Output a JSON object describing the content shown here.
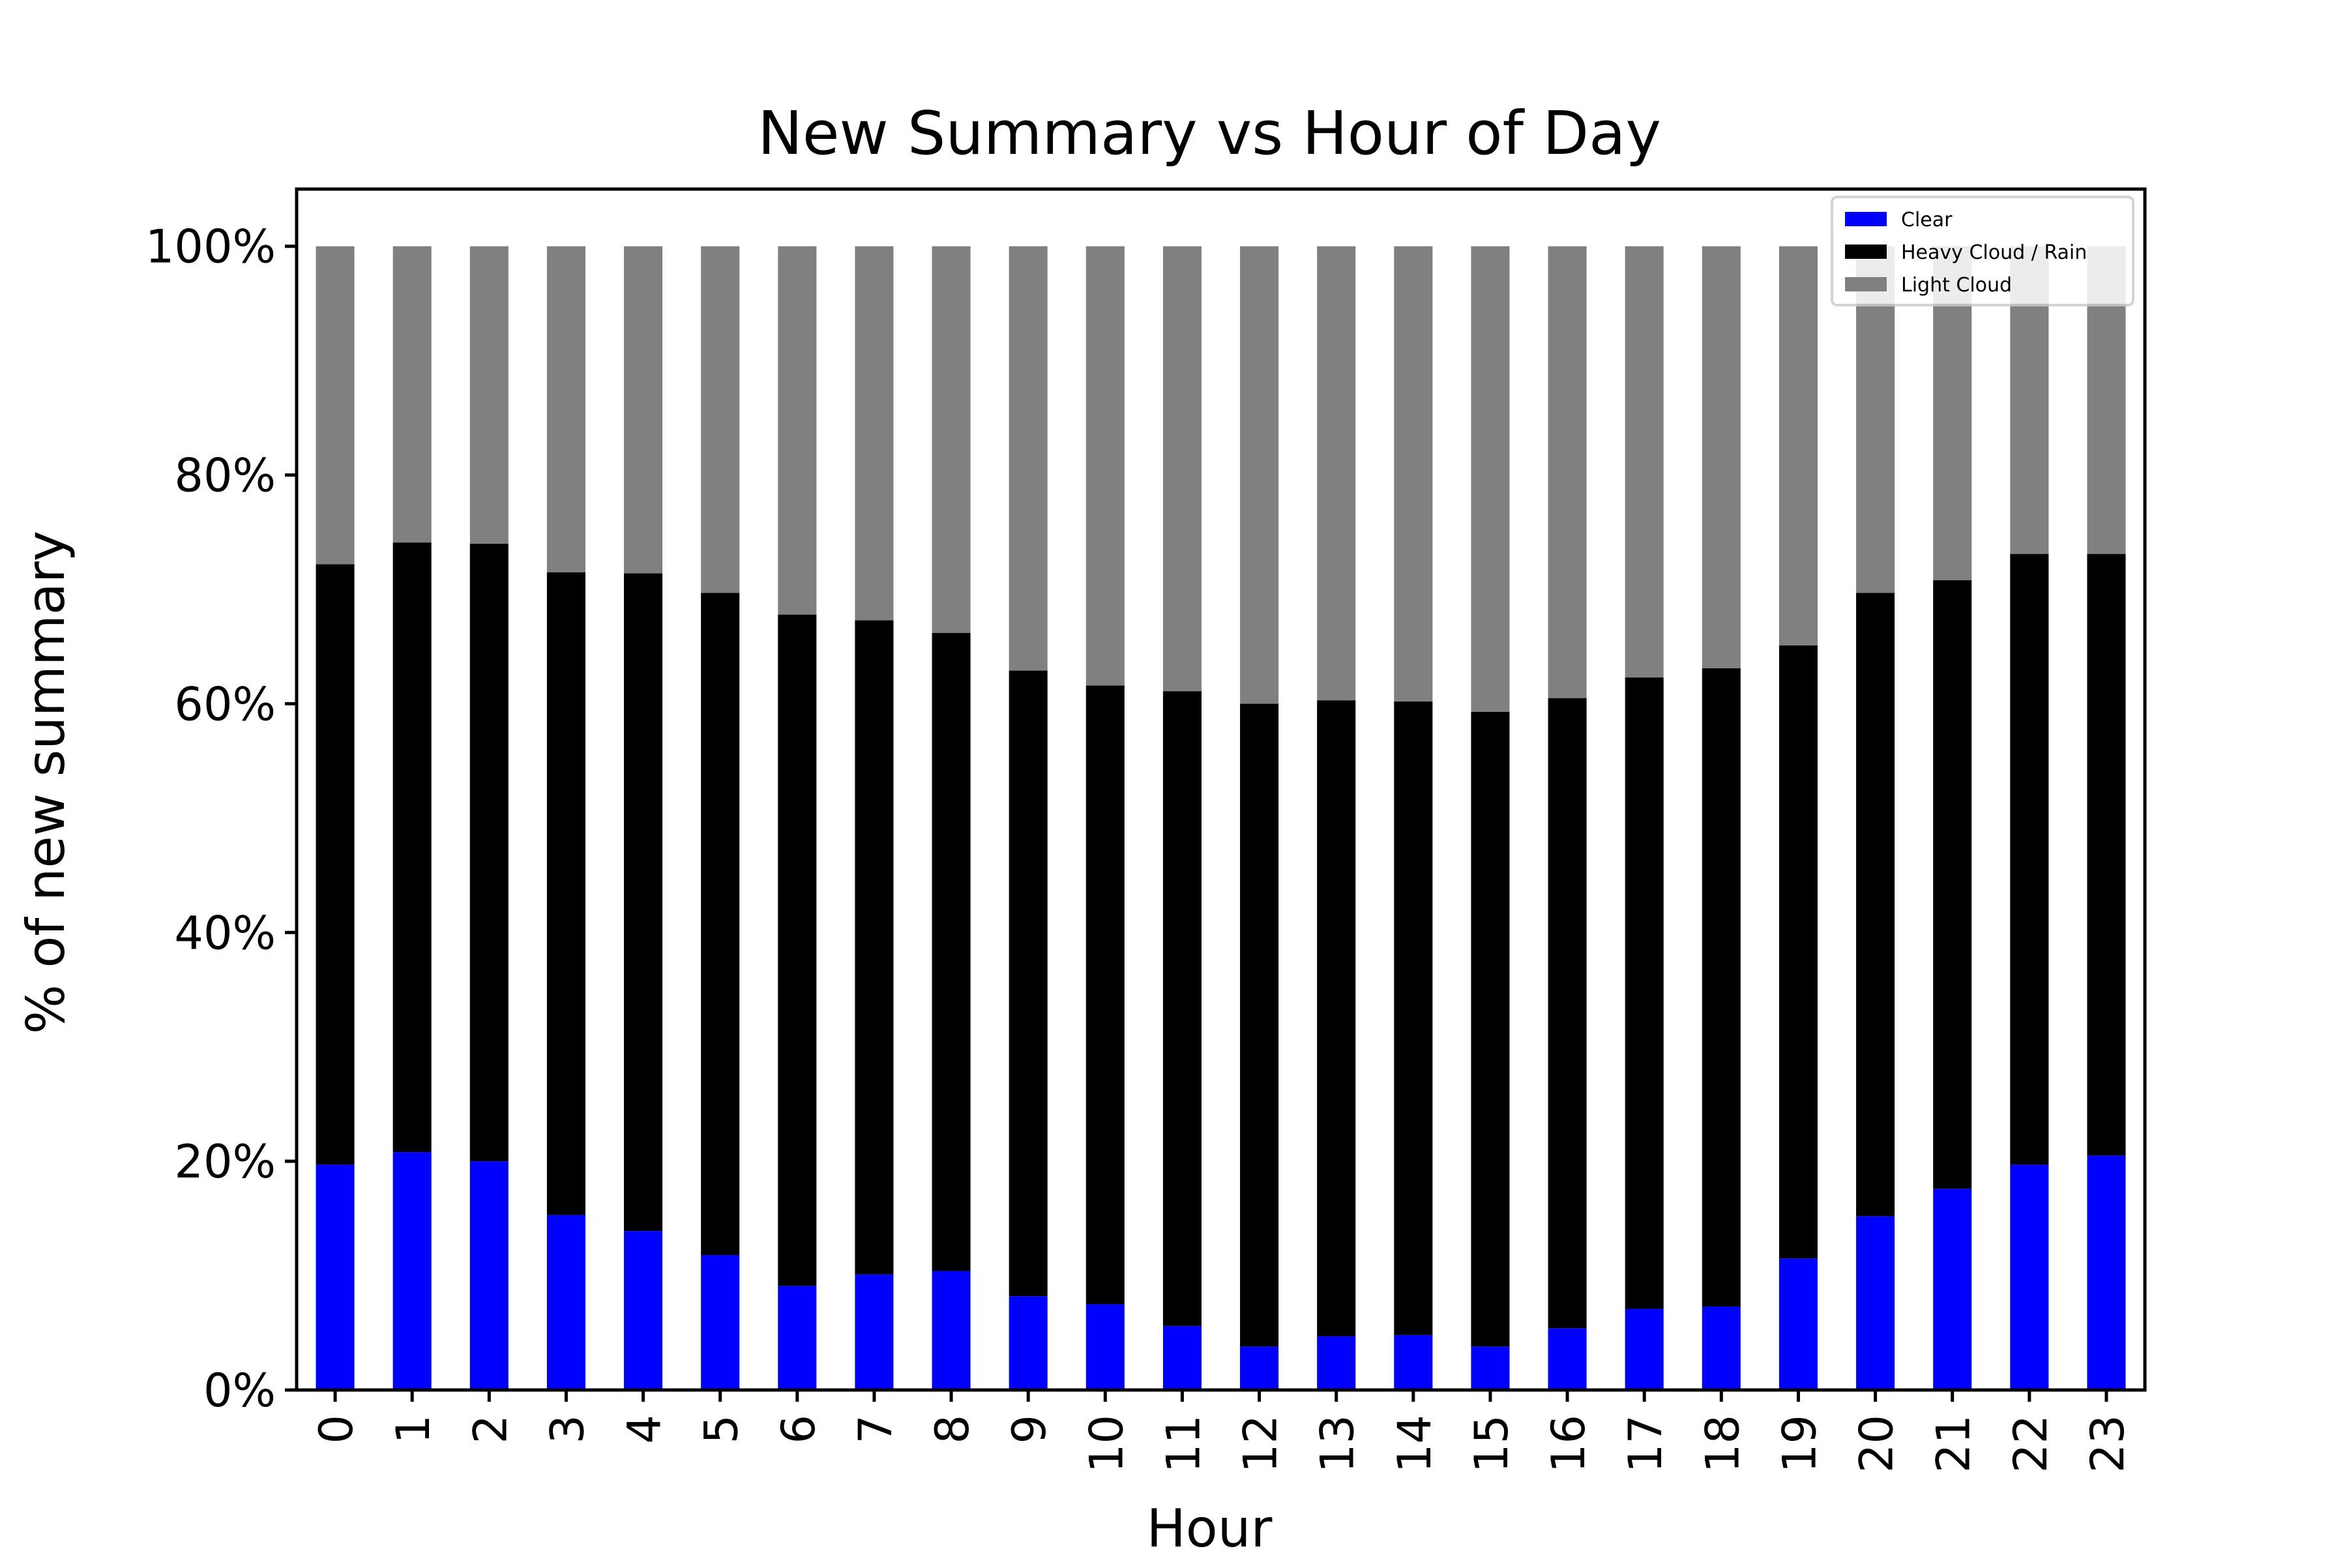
{
  "chart_data": {
    "type": "bar",
    "stacked": true,
    "normalized_percent": true,
    "title": "New Summary vs Hour of Day",
    "xlabel": "Hour",
    "ylabel": "% of new summary",
    "categories": [
      "0",
      "1",
      "2",
      "3",
      "4",
      "5",
      "6",
      "7",
      "8",
      "9",
      "10",
      "11",
      "12",
      "13",
      "14",
      "15",
      "16",
      "17",
      "18",
      "19",
      "20",
      "21",
      "22",
      "23"
    ],
    "ylim": [
      0,
      105
    ],
    "yticks": [
      0,
      20,
      40,
      60,
      80,
      100
    ],
    "ytick_labels": [
      "0%",
      "20%",
      "40%",
      "60%",
      "80%",
      "100%"
    ],
    "xtick_rotation": "vertical",
    "grid": false,
    "legend_position": "top-right",
    "series": [
      {
        "name": "Clear",
        "color": "#0000ff",
        "values": [
          19.7,
          20.8,
          20.0,
          15.3,
          13.9,
          11.8,
          9.1,
          10.1,
          10.4,
          8.2,
          7.5,
          5.6,
          3.8,
          4.7,
          4.8,
          3.8,
          5.4,
          7.1,
          7.3,
          11.5,
          15.2,
          17.6,
          19.7,
          20.5
        ]
      },
      {
        "name": "Heavy Cloud / Rain",
        "color": "#000000",
        "values": [
          52.5,
          53.3,
          54.0,
          56.2,
          57.5,
          57.9,
          58.7,
          57.2,
          55.8,
          54.7,
          54.1,
          55.5,
          56.2,
          55.6,
          55.4,
          55.5,
          55.1,
          55.2,
          55.8,
          53.6,
          54.5,
          53.2,
          53.4,
          52.6
        ]
      },
      {
        "name": "Light Cloud",
        "color": "#808080",
        "values": [
          27.8,
          25.9,
          26.0,
          28.5,
          28.6,
          30.3,
          32.2,
          32.7,
          33.8,
          37.1,
          38.4,
          38.9,
          40.0,
          39.7,
          39.8,
          40.7,
          39.5,
          37.7,
          36.9,
          34.9,
          30.3,
          29.2,
          26.9,
          26.9
        ]
      }
    ]
  }
}
